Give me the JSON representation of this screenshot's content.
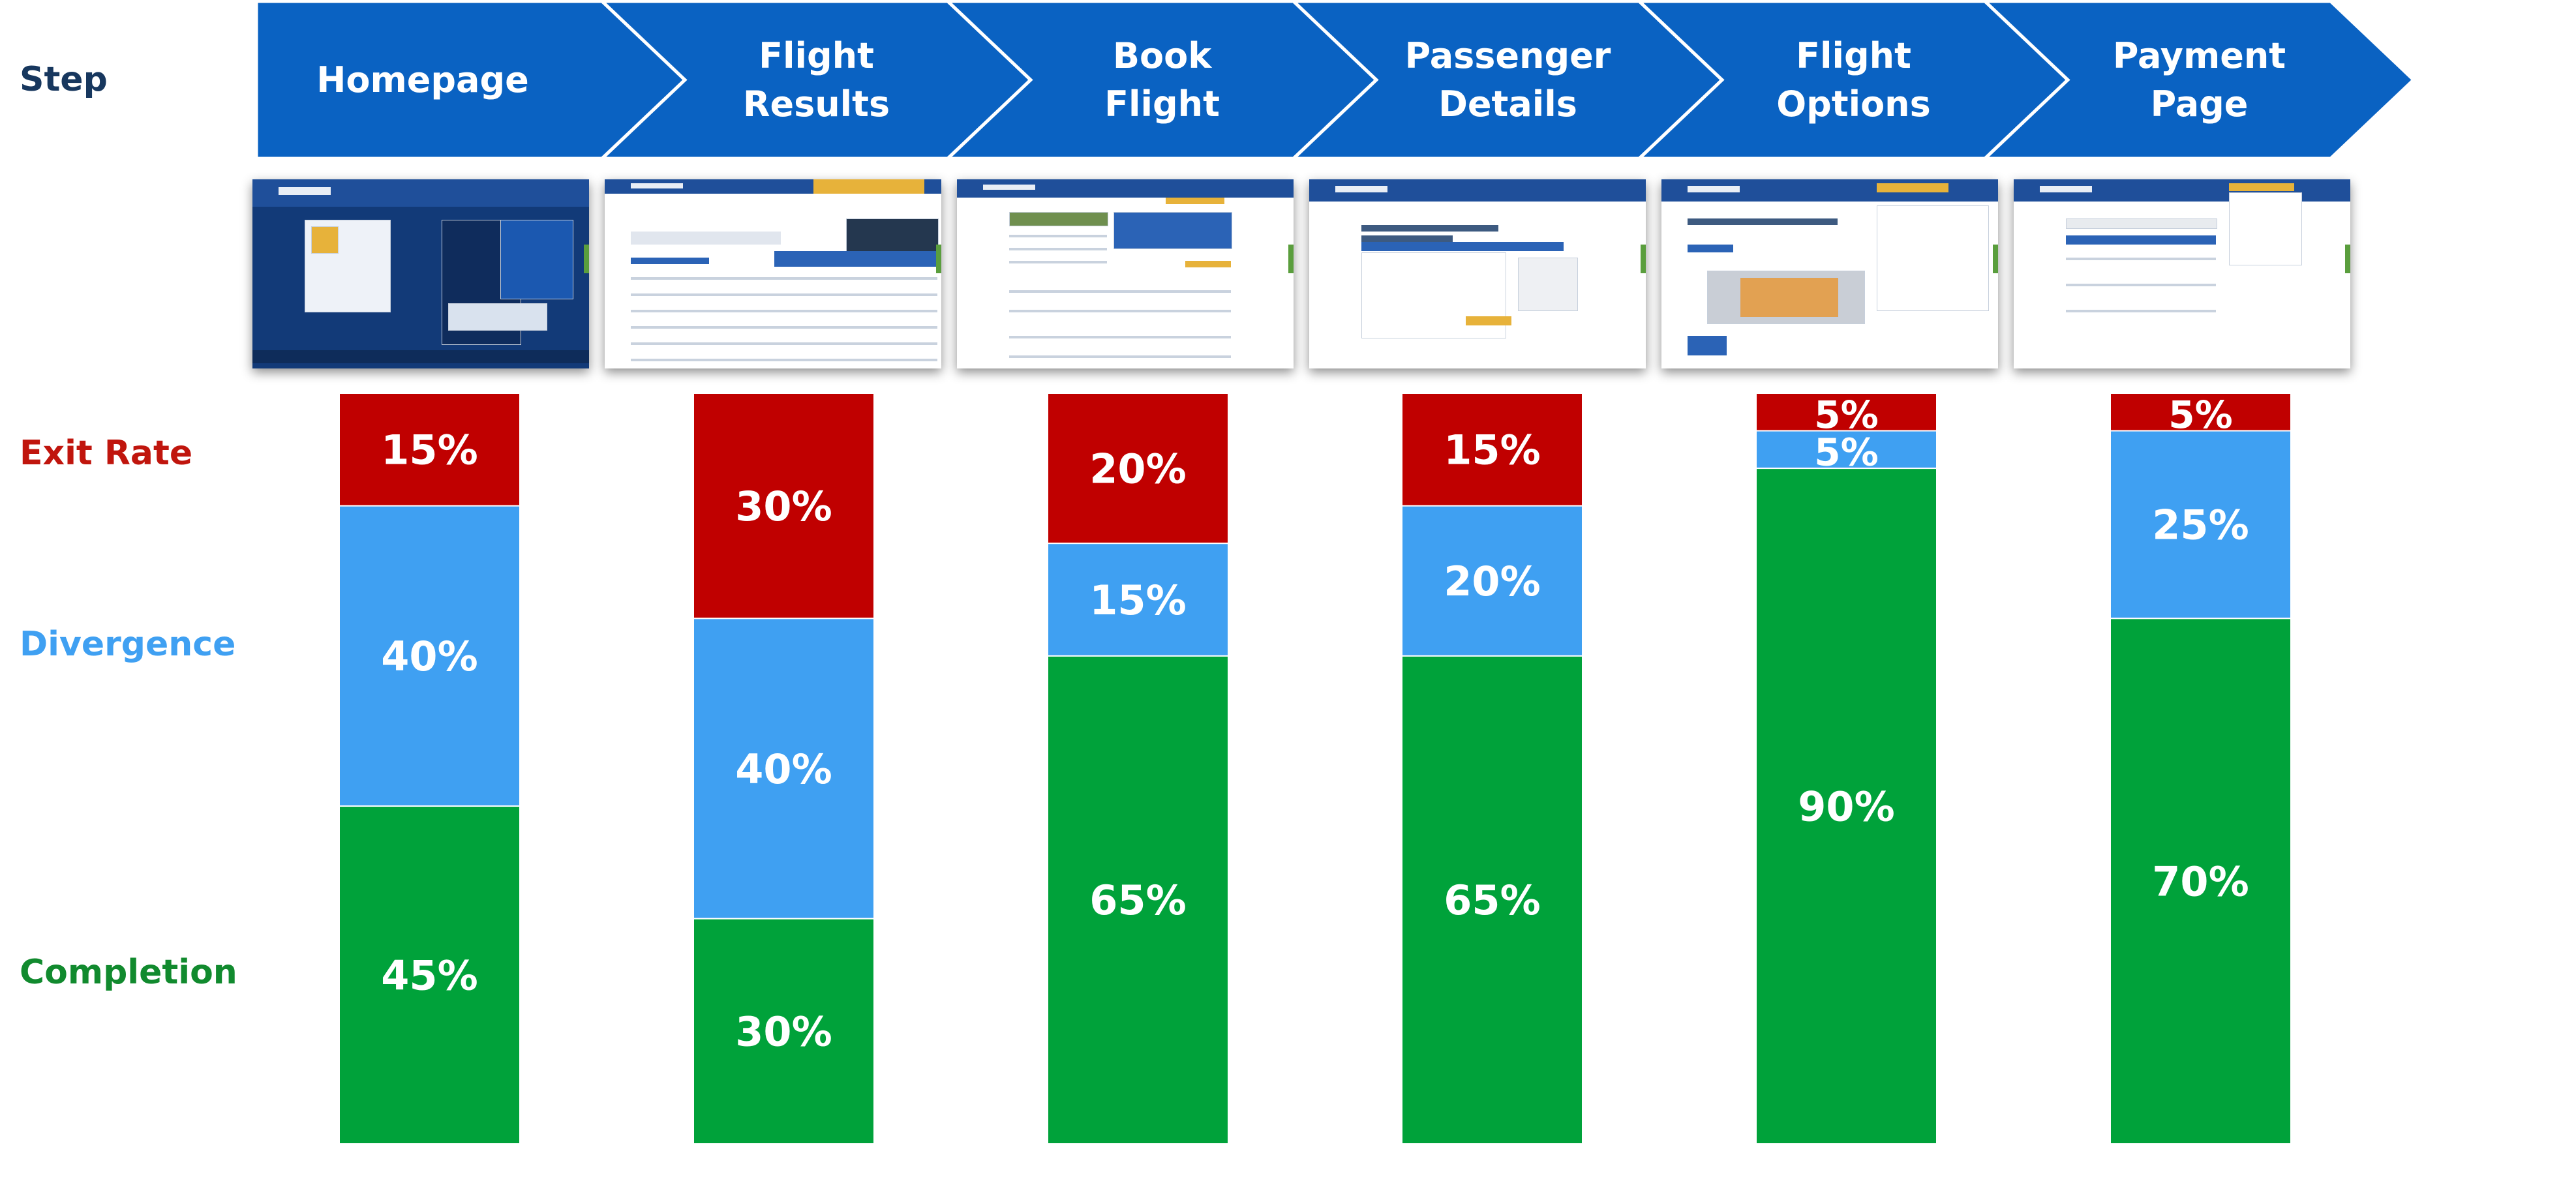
{
  "row_labels": {
    "step": "Step",
    "exit": "Exit Rate",
    "divergence": "Divergence",
    "completion": "Completion"
  },
  "colors": {
    "chevron": "#0a62c2",
    "exit": "#c00000",
    "divergence": "#3fa0f2",
    "completion": "#00a23a",
    "step_label": "#17375e",
    "exit_label": "#c0150d",
    "divergence_label": "#3fa0f2",
    "completion_label": "#118a2e"
  },
  "steps": [
    {
      "line1": "Homepage",
      "line2": ""
    },
    {
      "line1": "Flight",
      "line2": "Results"
    },
    {
      "line1": "Book",
      "line2": "Flight"
    },
    {
      "line1": "Passenger",
      "line2": "Details"
    },
    {
      "line1": "Flight",
      "line2": "Options"
    },
    {
      "line1": "Payment",
      "line2": "Page"
    }
  ],
  "chart_data": {
    "type": "bar",
    "stacked": true,
    "normalized": true,
    "categories": [
      "Homepage",
      "Flight Results",
      "Book Flight",
      "Passenger Details",
      "Flight Options",
      "Payment Page"
    ],
    "series": [
      {
        "name": "Exit Rate",
        "values": [
          15,
          30,
          20,
          15,
          5,
          5
        ],
        "labels": [
          "15%",
          "30%",
          "20%",
          "15%",
          "5%",
          "5%"
        ]
      },
      {
        "name": "Divergence",
        "values": [
          40,
          40,
          15,
          20,
          5,
          25
        ],
        "labels": [
          "40%",
          "40%",
          "15%",
          "20%",
          "5%",
          "25%"
        ]
      },
      {
        "name": "Completion",
        "values": [
          45,
          30,
          65,
          65,
          90,
          70
        ],
        "labels": [
          "45%",
          "30%",
          "65%",
          "65%",
          "90%",
          "70%"
        ]
      }
    ],
    "ylim": [
      0,
      100
    ]
  }
}
